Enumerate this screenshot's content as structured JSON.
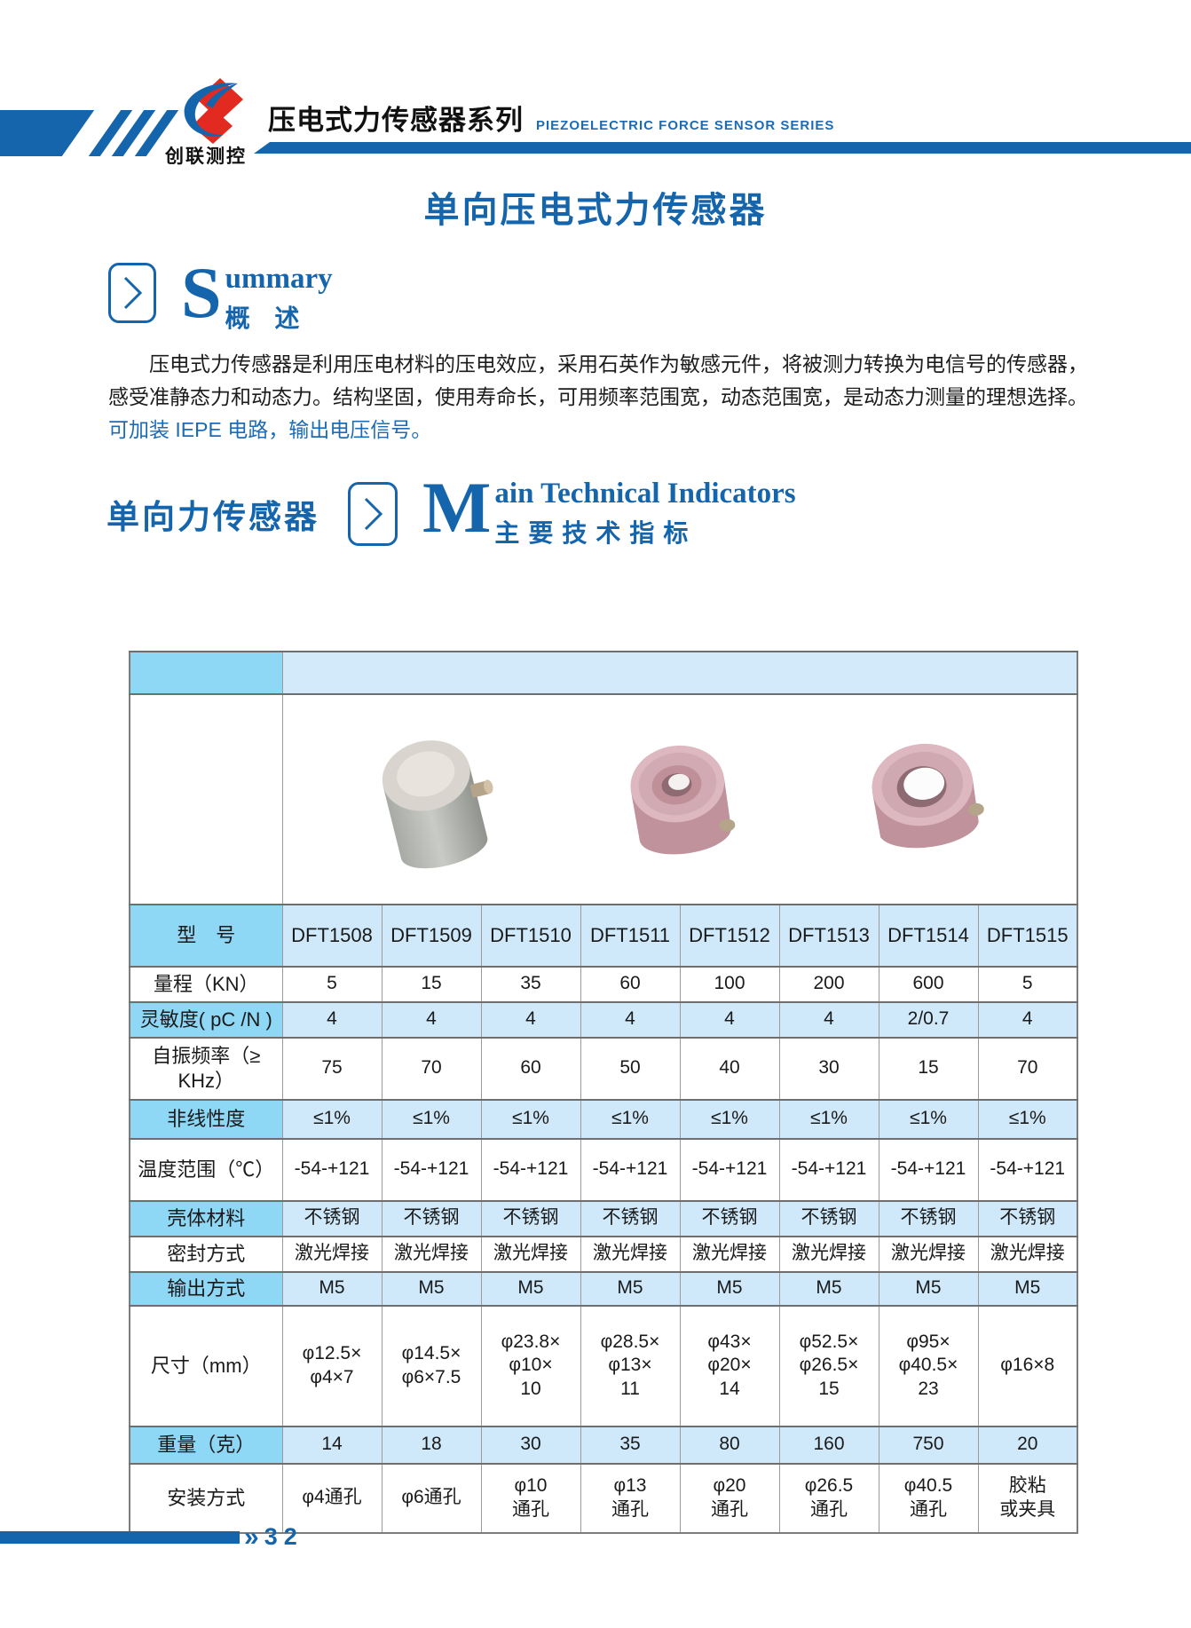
{
  "colors": {
    "accent_blue": "#1565ad",
    "header_en_blue": "#1c6bb6",
    "logo_red": "#e32a20",
    "table_label_cell": "#8ed7f5",
    "table_shaded_cell": "#cfe9fa",
    "table_border": "#9a9a9a"
  },
  "header": {
    "logo_text": "创联测控",
    "series_zh": "压电式力传感器系列",
    "series_en": "PIEZOELECTRIC FORCE SENSOR SERIES"
  },
  "page": {
    "title": "单向压电式力传感器"
  },
  "summary": {
    "drop_cap": "S",
    "heading_en_rest": "ummary",
    "heading_zh": "概 述",
    "line1": "压电式力传感器是利用压电材料的压电效应，采用石英作为敏感元件，将被测力转换为电信号的传感器，",
    "line2": "感受准静态力和动态力。结构坚固，使用寿命长，可用频率范围宽，动态范围宽，是动态力测量的理想选择。",
    "line3": "可加装 IEPE 电路，输出电压信号。"
  },
  "section": {
    "side_label": "单向力传感器",
    "drop_cap": "M",
    "heading_en_rest": "ain Technical Indicators",
    "heading_zh": "主要技术指标"
  },
  "table": {
    "images": [
      "cylindrical-sensor-photo",
      "ring-sensor-photo",
      "large-ring-sensor-photo"
    ],
    "model_row": {
      "label": "型　号",
      "values": [
        "DFT1508",
        "DFT1509",
        "DFT1510",
        "DFT1511",
        "DFT1512",
        "DFT1513",
        "DFT1514",
        "DFT1515"
      ]
    },
    "rows": [
      {
        "label": "量程（KN）",
        "shaded": false,
        "values": [
          "5",
          "15",
          "35",
          "60",
          "100",
          "200",
          "600",
          "5"
        ]
      },
      {
        "label": "灵敏度( pC /N )",
        "shaded": true,
        "values": [
          "4",
          "4",
          "4",
          "4",
          "4",
          "4",
          "2/0.7",
          "4"
        ]
      },
      {
        "label": "自振频率（≥\nKHz）",
        "shaded": false,
        "values": [
          "75",
          "70",
          "60",
          "50",
          "40",
          "30",
          "15",
          "70"
        ]
      },
      {
        "label": "非线性度",
        "shaded": true,
        "values": [
          "≤1%",
          "≤1%",
          "≤1%",
          "≤1%",
          "≤1%",
          "≤1%",
          "≤1%",
          "≤1%"
        ]
      },
      {
        "label": "温度范围（℃）",
        "shaded": false,
        "values": [
          "-54-+121",
          "-54-+121",
          "-54-+121",
          "-54-+121",
          "-54-+121",
          "-54-+121",
          "-54-+121",
          "-54-+121"
        ]
      },
      {
        "label": "壳体材料",
        "shaded": true,
        "values": [
          "不锈钢",
          "不锈钢",
          "不锈钢",
          "不锈钢",
          "不锈钢",
          "不锈钢",
          "不锈钢",
          "不锈钢"
        ]
      },
      {
        "label": "密封方式",
        "shaded": false,
        "values": [
          "激光焊接",
          "激光焊接",
          "激光焊接",
          "激光焊接",
          "激光焊接",
          "激光焊接",
          "激光焊接",
          "激光焊接"
        ]
      },
      {
        "label": "输出方式",
        "shaded": true,
        "values": [
          "M5",
          "M5",
          "M5",
          "M5",
          "M5",
          "M5",
          "M5",
          "M5"
        ]
      },
      {
        "label": "尺寸（mm）",
        "shaded": false,
        "values": [
          "φ12.5×\nφ4×7",
          "φ14.5×\nφ6×7.5",
          "φ23.8×\nφ10×\n10",
          "φ28.5×\nφ13×\n11",
          "φ43×\nφ20×\n14",
          "φ52.5×\nφ26.5×\n15",
          "φ95×\nφ40.5×\n23",
          "φ16×8"
        ]
      },
      {
        "label": "重量（克）",
        "shaded": true,
        "values": [
          "14",
          "18",
          "30",
          "35",
          "80",
          "160",
          "750",
          "20"
        ]
      },
      {
        "label": "安装方式",
        "shaded": false,
        "values": [
          "φ4通孔",
          "φ6通孔",
          "φ10\n通孔",
          "φ13\n通孔",
          "φ20\n通孔",
          "φ26.5\n通孔",
          "φ40.5\n通孔",
          "胶粘\n或夹具"
        ]
      }
    ]
  },
  "footer": {
    "chevron": "»",
    "page_number": "32"
  }
}
